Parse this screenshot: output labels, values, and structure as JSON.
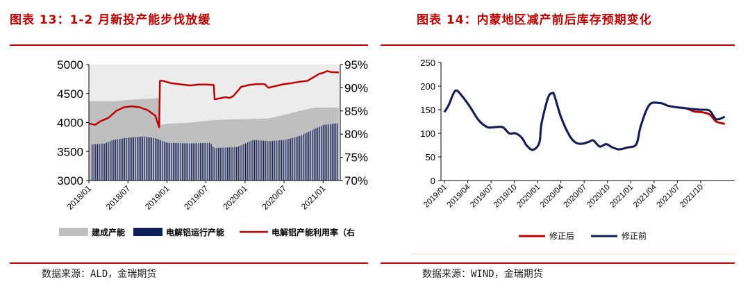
{
  "left_panel": {
    "title": "图表 13：1-2 月新投产能步伐放缓",
    "source": "数据来源：ALD，金瑞期货",
    "legend": [
      "建成产能",
      "电解铝运行产能",
      "电解铝产能利用率（右"
    ],
    "colors": {
      "capacity": "#bfbfbf",
      "running": "#0f1f5a",
      "util": "#c00000",
      "plot_bg": "#ececec"
    }
  },
  "right_panel": {
    "title": "图表 14：内蒙地区减产前后库存预期变化",
    "source": "数据来源：WIND，金瑞期货",
    "legend": [
      "修正后",
      "修正前"
    ],
    "colors": {
      "after": "#c00000",
      "before": "#0f1f5a"
    }
  },
  "chart_data": [
    {
      "type": "bar",
      "x_tick_labels": [
        "2018/01",
        "2018/07",
        "2019/01",
        "2019/07",
        "2020/01",
        "2020/07",
        "2021/01"
      ],
      "ylim": [
        3000,
        5000
      ],
      "y_ticks": [
        3000,
        3500,
        4000,
        4500,
        5000
      ],
      "y2lim": [
        70,
        95
      ],
      "y2_ticks": [
        "70%",
        "75%",
        "80%",
        "85%",
        "90%",
        "95%"
      ],
      "series": [
        {
          "name": "建成产能",
          "kind": "area",
          "x": [
            2018.0,
            2018.35,
            2018.5,
            2018.9,
            2018.92,
            2019.0,
            2019.3,
            2019.5,
            2019.7,
            2020.0,
            2020.3,
            2020.5,
            2020.7,
            2020.9,
            2021.1,
            2021.2
          ],
          "values": [
            4370,
            4370,
            4390,
            4420,
            3960,
            3980,
            4000,
            4030,
            4050,
            4060,
            4070,
            4130,
            4200,
            4260,
            4260,
            4260
          ]
        },
        {
          "name": "电解铝运行产能",
          "kind": "bar",
          "x": [
            2018.0,
            2018.2,
            2018.3,
            2018.5,
            2018.7,
            2018.85,
            2019.0,
            2019.3,
            2019.55,
            2019.6,
            2019.9,
            2020.1,
            2020.3,
            2020.5,
            2020.7,
            2020.9,
            2021.0,
            2021.2
          ],
          "values": [
            3620,
            3640,
            3700,
            3740,
            3760,
            3730,
            3650,
            3640,
            3650,
            3560,
            3580,
            3700,
            3680,
            3700,
            3770,
            3900,
            3960,
            3990
          ]
        },
        {
          "name": "电解铝产能利用率（右",
          "kind": "line",
          "axis": "right",
          "x": [
            2018.0,
            2018.08,
            2018.15,
            2018.25,
            2018.35,
            2018.45,
            2018.55,
            2018.65,
            2018.75,
            2018.85,
            2018.9,
            2018.91,
            2018.95,
            2019.05,
            2019.15,
            2019.3,
            2019.4,
            2019.5,
            2019.6,
            2019.61,
            2019.7,
            2019.75,
            2019.8,
            2019.85,
            2019.95,
            2020.05,
            2020.15,
            2020.25,
            2020.3,
            2020.4,
            2020.5,
            2020.6,
            2020.7,
            2020.8,
            2020.85,
            2020.95,
            2021.0,
            2021.05,
            2021.1,
            2021.2
          ],
          "values": [
            82.3,
            82.0,
            82.8,
            83.5,
            85.0,
            85.8,
            86.0,
            85.8,
            85.2,
            84.0,
            81.5,
            91.5,
            91.5,
            91.0,
            90.8,
            90.5,
            90.7,
            90.7,
            90.6,
            87.5,
            87.8,
            88.0,
            87.8,
            88.2,
            90.2,
            90.6,
            90.8,
            90.8,
            90.0,
            90.4,
            90.8,
            91.0,
            91.3,
            91.5,
            92.0,
            93.0,
            93.2,
            93.6,
            93.4,
            93.3
          ]
        }
      ]
    },
    {
      "type": "line",
      "x_tick_labels": [
        "2019/01",
        "2019/04",
        "2019/07",
        "2019/10",
        "2020/01",
        "2020/04",
        "2020/07",
        "2020/10",
        "2021/01",
        "2021/04",
        "2021/07",
        "2021/10"
      ],
      "ylim": [
        0,
        250
      ],
      "y_ticks": [
        0,
        50,
        100,
        150,
        200,
        250
      ],
      "series": [
        {
          "name": "修正后",
          "x": [
            0,
            0.2,
            0.5,
            0.8,
            1.2,
            1.6,
            2.0,
            2.3,
            2.7,
            3.0,
            3.3,
            3.6,
            3.8,
            4.1,
            4.4,
            4.5,
            4.8,
            5.0,
            5.1,
            5.4,
            5.8,
            6.1,
            6.4,
            6.7,
            6.9,
            7.2,
            7.5,
            7.8,
            8.1,
            8.5,
            8.9,
            9.1,
            9.5,
            10.0,
            10.4,
            10.8,
            11.2,
            11.6,
            11.9,
            12.3,
            12.6,
            13.0
          ],
          "values": [
            145,
            160,
            190,
            180,
            155,
            127,
            113,
            113,
            113,
            100,
            100,
            90,
            75,
            65,
            80,
            120,
            175,
            185,
            180,
            135,
            95,
            80,
            78,
            82,
            85,
            72,
            77,
            70,
            66,
            70,
            77,
            115,
            160,
            164,
            158,
            155,
            153,
            146,
            145,
            140,
            125,
            120
          ]
        },
        {
          "name": "修正前",
          "x": [
            0,
            0.2,
            0.5,
            0.8,
            1.2,
            1.6,
            2.0,
            2.3,
            2.7,
            3.0,
            3.3,
            3.6,
            3.8,
            4.1,
            4.4,
            4.5,
            4.8,
            5.0,
            5.1,
            5.4,
            5.8,
            6.1,
            6.4,
            6.7,
            6.9,
            7.2,
            7.5,
            7.8,
            8.1,
            8.5,
            8.9,
            9.1,
            9.5,
            10.0,
            10.4,
            10.8,
            11.2,
            11.6,
            11.9,
            12.3,
            12.6,
            13.0
          ],
          "values": [
            145,
            160,
            190,
            180,
            155,
            127,
            113,
            113,
            113,
            100,
            100,
            90,
            75,
            65,
            80,
            120,
            175,
            185,
            180,
            135,
            95,
            80,
            78,
            82,
            85,
            72,
            77,
            70,
            66,
            70,
            77,
            115,
            160,
            164,
            158,
            155,
            153,
            151,
            150,
            148,
            130,
            135
          ]
        }
      ]
    }
  ]
}
